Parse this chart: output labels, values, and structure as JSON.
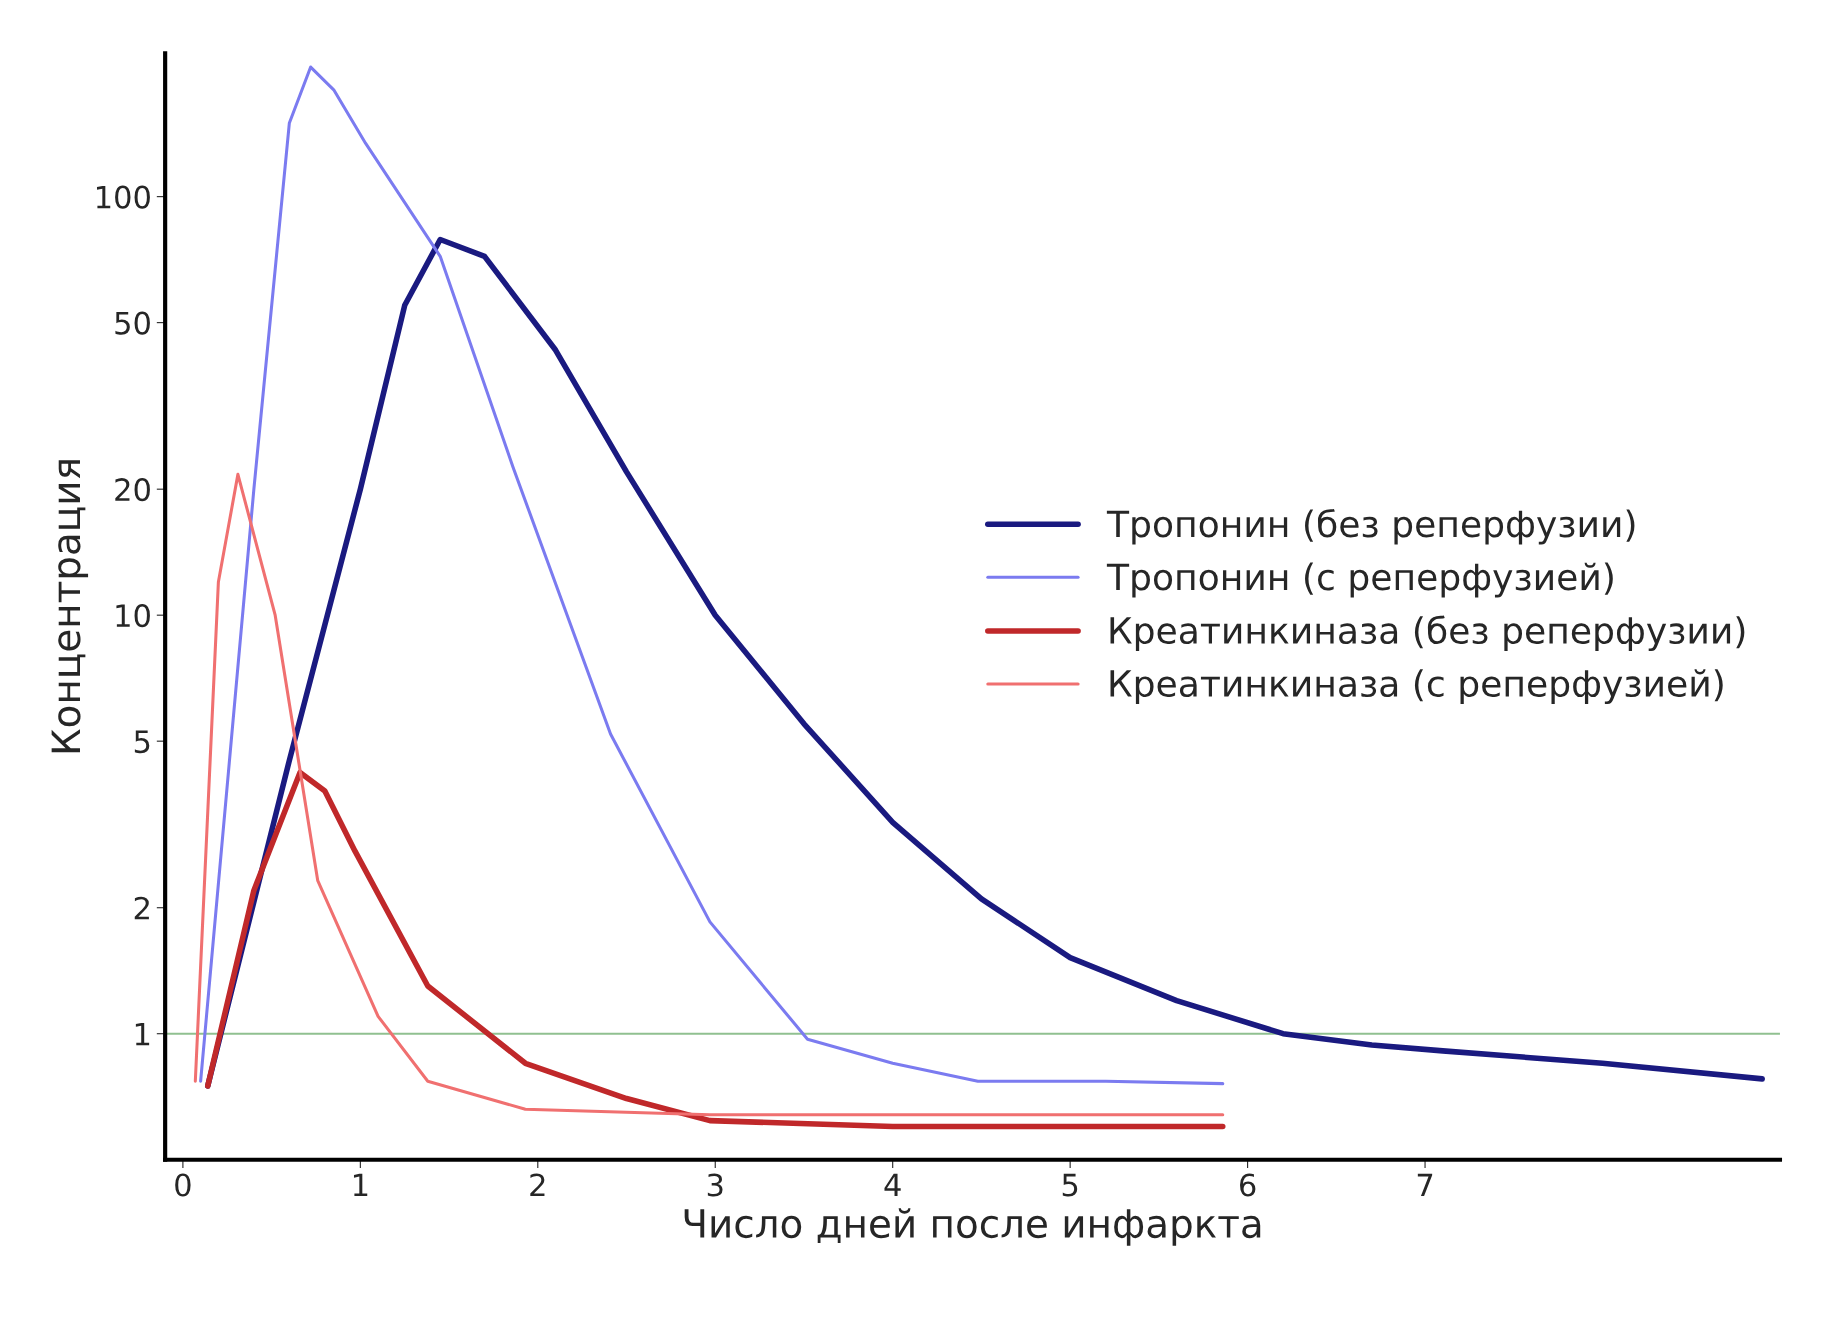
{
  "chart_data": {
    "type": "line",
    "xlabel": "Число дней после инфаркта",
    "ylabel": "Концентрация",
    "log": "y",
    "xlim": [
      -0.1,
      9.0
    ],
    "xticks": [
      0,
      1,
      2,
      3,
      4,
      5,
      6,
      7
    ],
    "ylim": [
      0.5,
      220
    ],
    "yticks": [
      1,
      2,
      5,
      10,
      20,
      50,
      100
    ],
    "grid": false,
    "legend": "center right",
    "marker": "none",
    "line_style": "solid",
    "ref_lines": [
      {
        "axis": "y",
        "value": 1,
        "color": "#90c090"
      }
    ],
    "series": [
      {
        "name": "Тропонин (без реперфузии)",
        "color": "#1a1a80",
        "x": [
          0.14,
          0.6,
          1.0,
          1.25,
          1.45,
          1.7,
          2.1,
          2.5,
          3.0,
          3.5,
          4.0,
          4.5,
          5.0,
          5.6,
          6.2,
          6.7,
          7.1,
          8.0,
          8.9
        ],
        "values": [
          0.75,
          4.5,
          20,
          55,
          79,
          72,
          43,
          22,
          10,
          5.5,
          3.2,
          2.1,
          1.52,
          1.2,
          1.0,
          0.94,
          0.91,
          0.85,
          0.78
        ]
      },
      {
        "name": "Тропонин (с реперфузией)",
        "color": "#7b7bf0",
        "x": [
          0.1,
          0.4,
          0.6,
          0.72,
          0.85,
          1.03,
          1.45,
          1.86,
          2.41,
          2.97,
          3.52,
          4.0,
          4.48,
          5.2,
          5.86
        ],
        "values": [
          0.77,
          20,
          150,
          204,
          180,
          134,
          72,
          22.6,
          5.2,
          1.85,
          0.97,
          0.85,
          0.77,
          0.77,
          0.76
        ]
      },
      {
        "name": "Креатинкиназа (без реперфузии)",
        "color": "#c0282a",
        "x": [
          0.14,
          0.4,
          0.66,
          0.8,
          0.97,
          1.38,
          1.93,
          2.5,
          2.97,
          4.0,
          5.0,
          5.86
        ],
        "values": [
          0.75,
          2.2,
          4.21,
          3.8,
          2.73,
          1.3,
          0.85,
          0.7,
          0.62,
          0.6,
          0.6,
          0.6
        ]
      },
      {
        "name": "Креатинкиназа (с реперфузией)",
        "color": "#f07070",
        "x": [
          0.07,
          0.2,
          0.31,
          0.52,
          0.76,
          1.1,
          1.38,
          1.93,
          2.97,
          4.0,
          5.0,
          5.86
        ],
        "values": [
          0.77,
          12,
          21.7,
          10,
          2.32,
          1.1,
          0.77,
          0.66,
          0.64,
          0.64,
          0.64,
          0.64
        ]
      }
    ]
  }
}
